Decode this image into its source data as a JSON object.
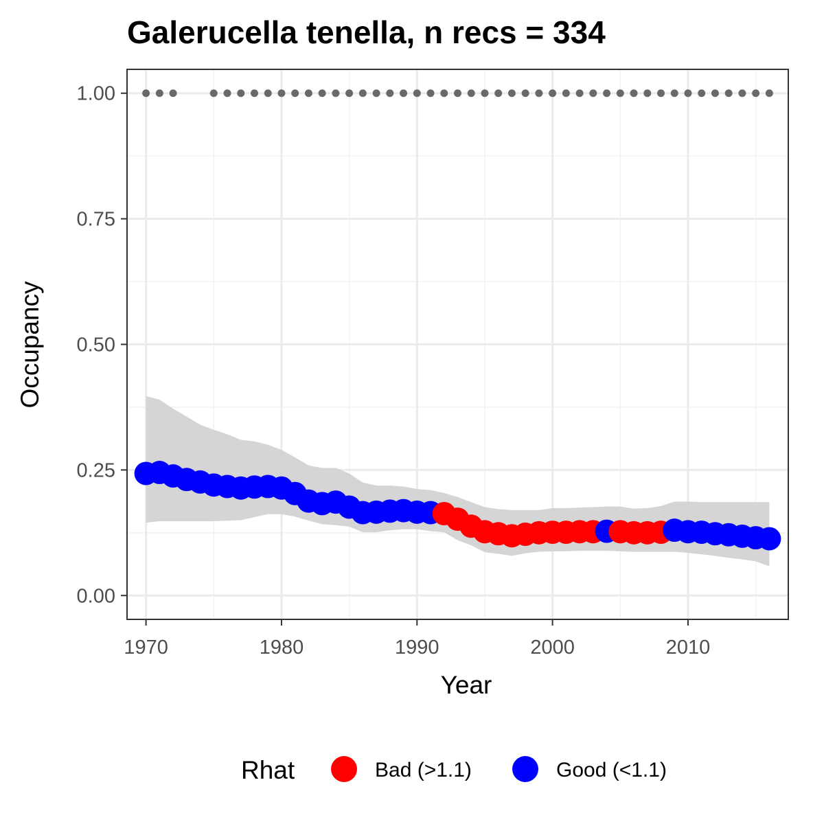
{
  "chart_data": {
    "type": "line",
    "title": "Galerucella tenella, n recs = 334",
    "xlabel": "Year",
    "ylabel": "Occupancy",
    "xlim": [
      1968.6,
      2017.4
    ],
    "ylim": [
      -0.0475,
      1.0475
    ],
    "x_ticks": [
      1970,
      1980,
      1990,
      2000,
      2010
    ],
    "x_tick_labels": [
      "1970",
      "1980",
      "1990",
      "2000",
      "2010"
    ],
    "y_ticks": [
      0,
      0.25,
      0.5,
      0.75,
      1
    ],
    "y_tick_labels": [
      "0.00",
      "0.25",
      "0.50",
      "0.75",
      "1.00"
    ],
    "grid": true,
    "legend": {
      "title": "Rhat",
      "position": "bottom",
      "entries": [
        {
          "label": "Bad (>1.1)",
          "color": "#FF0000"
        },
        {
          "label": "Good (<1.1)",
          "color": "#0000FF"
        }
      ]
    },
    "colors": {
      "bad": "#FF0000",
      "good": "#0000FF",
      "ribbon": "#D3D3D3",
      "records": "#696969"
    },
    "series": [
      {
        "name": "Rhat",
        "x": [
          1970,
          1971,
          1972,
          1973,
          1974,
          1975,
          1976,
          1977,
          1978,
          1979,
          1980,
          1981,
          1982,
          1983,
          1984,
          1985,
          1986,
          1987,
          1988,
          1989,
          1990,
          1991,
          1992,
          1993,
          1994,
          1995,
          1996,
          1997,
          1998,
          1999,
          2000,
          2001,
          2002,
          2003,
          2004,
          2005,
          2006,
          2007,
          2008,
          2009,
          2010,
          2011,
          2012,
          2013,
          2014,
          2015,
          2016
        ],
        "y": [
          0.243,
          0.245,
          0.238,
          0.231,
          0.226,
          0.22,
          0.217,
          0.214,
          0.216,
          0.217,
          0.214,
          0.203,
          0.188,
          0.183,
          0.186,
          0.176,
          0.165,
          0.166,
          0.168,
          0.169,
          0.166,
          0.165,
          0.163,
          0.152,
          0.138,
          0.127,
          0.123,
          0.119,
          0.122,
          0.125,
          0.126,
          0.126,
          0.127,
          0.127,
          0.128,
          0.127,
          0.125,
          0.125,
          0.126,
          0.13,
          0.127,
          0.126,
          0.123,
          0.121,
          0.118,
          0.115,
          0.113
        ],
        "status": [
          "good",
          "good",
          "good",
          "good",
          "good",
          "good",
          "good",
          "good",
          "good",
          "good",
          "good",
          "good",
          "good",
          "good",
          "good",
          "good",
          "good",
          "good",
          "good",
          "good",
          "good",
          "good",
          "bad",
          "bad",
          "bad",
          "bad",
          "bad",
          "bad",
          "bad",
          "bad",
          "bad",
          "bad",
          "bad",
          "bad",
          "good",
          "bad",
          "bad",
          "bad",
          "bad",
          "good",
          "good",
          "good",
          "good",
          "good",
          "good",
          "good",
          "good"
        ]
      },
      {
        "name": "",
        "x": [
          1970,
          1971,
          1972,
          1973,
          1974,
          1975,
          1976,
          1977,
          1978,
          1979,
          1980,
          1981,
          1982,
          1983,
          1984,
          1985,
          1986,
          1987,
          1988,
          1989,
          1990,
          1991,
          1992,
          1993,
          1994,
          1995,
          1996,
          1997,
          1998,
          1999,
          2000,
          2001,
          2002,
          2003,
          2004,
          2005,
          2006,
          2007,
          2008,
          2009,
          2010,
          2011,
          2012,
          2013,
          2014,
          2015,
          2016
        ],
        "lower": [
          0.145,
          0.148,
          0.148,
          0.148,
          0.148,
          0.148,
          0.149,
          0.15,
          0.156,
          0.162,
          0.162,
          0.157,
          0.149,
          0.142,
          0.14,
          0.137,
          0.126,
          0.126,
          0.13,
          0.132,
          0.132,
          0.128,
          0.126,
          0.11,
          0.1,
          0.086,
          0.083,
          0.079,
          0.084,
          0.087,
          0.088,
          0.088,
          0.089,
          0.089,
          0.089,
          0.088,
          0.087,
          0.087,
          0.087,
          0.087,
          0.085,
          0.082,
          0.079,
          0.075,
          0.072,
          0.068,
          0.058
        ],
        "upper": [
          0.397,
          0.39,
          0.372,
          0.356,
          0.34,
          0.33,
          0.321,
          0.31,
          0.307,
          0.3,
          0.29,
          0.275,
          0.259,
          0.254,
          0.254,
          0.243,
          0.225,
          0.219,
          0.219,
          0.217,
          0.212,
          0.21,
          0.204,
          0.196,
          0.186,
          0.176,
          0.172,
          0.17,
          0.17,
          0.17,
          0.174,
          0.174,
          0.175,
          0.176,
          0.177,
          0.177,
          0.173,
          0.174,
          0.178,
          0.187,
          0.187,
          0.186,
          0.186,
          0.186,
          0.186,
          0.186,
          0.186
        ]
      },
      {
        "name": "",
        "x": [
          1970,
          1971,
          1972,
          1975,
          1976,
          1977,
          1978,
          1979,
          1980,
          1981,
          1982,
          1983,
          1984,
          1985,
          1986,
          1987,
          1988,
          1989,
          1990,
          1991,
          1992,
          1993,
          1994,
          1995,
          1996,
          1997,
          1998,
          1999,
          2000,
          2001,
          2002,
          2003,
          2004,
          2005,
          2006,
          2007,
          2008,
          2009,
          2010,
          2011,
          2012,
          2013,
          2014,
          2015,
          2016
        ],
        "y": [
          1,
          1,
          1,
          1,
          1,
          1,
          1,
          1,
          1,
          1,
          1,
          1,
          1,
          1,
          1,
          1,
          1,
          1,
          1,
          1,
          1,
          1,
          1,
          1,
          1,
          1,
          1,
          1,
          1,
          1,
          1,
          1,
          1,
          1,
          1,
          1,
          1,
          1,
          1,
          1,
          1,
          1,
          1,
          1,
          1
        ]
      }
    ]
  }
}
